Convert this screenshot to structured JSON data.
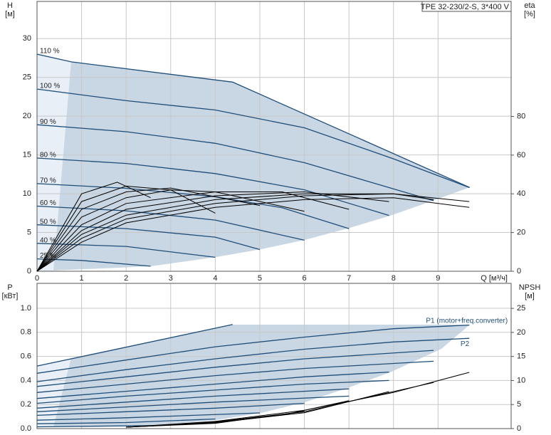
{
  "chart_data": [
    {
      "type": "line",
      "title": "TPE 32-230/2-S, 3*400 V",
      "ylabel": [
        "H",
        "[м]"
      ],
      "y2label": [
        "eta",
        "[%]"
      ],
      "xlabel": "Q [м³/ч]",
      "xlim": [
        0,
        10.64
      ],
      "xticks": [
        0,
        1,
        2,
        3,
        4,
        5,
        6,
        7,
        8,
        9
      ],
      "ylim": [
        0,
        34.8
      ],
      "yticks": [
        0,
        5,
        10,
        15,
        20,
        25,
        30
      ],
      "y2lim": [
        0,
        139.4
      ],
      "y2ticks": [
        0,
        20,
        40,
        60,
        80
      ],
      "grid": true,
      "series": [
        {
          "name": "110 %",
          "color": "#1f4e79",
          "x": [
            0,
            0.77,
            4.39,
            9.71
          ],
          "values": [
            28,
            27,
            24.4,
            10.8
          ]
        },
        {
          "name": "100 %",
          "color": "#1f4e79",
          "x": [
            0,
            2,
            4,
            6,
            8,
            9.7
          ],
          "values": [
            23.5,
            22,
            20.8,
            18.5,
            14.5,
            10.8
          ]
        },
        {
          "name": "90 %",
          "color": "#1f4e79",
          "x": [
            0,
            2,
            4,
            6,
            8.9
          ],
          "values": [
            18.9,
            18,
            16.5,
            14,
            9.1
          ]
        },
        {
          "name": "80 %",
          "color": "#1f4e79",
          "x": [
            0,
            2,
            4,
            6,
            7.9
          ],
          "values": [
            14.6,
            13.9,
            12.6,
            10.5,
            7.2
          ]
        },
        {
          "name": "70 %",
          "color": "#1f4e79",
          "x": [
            0,
            2,
            4,
            5.5,
            7
          ],
          "values": [
            11.3,
            10.7,
            9.6,
            8.2,
            5.5
          ]
        },
        {
          "name": "60 %",
          "color": "#1f4e79",
          "x": [
            0,
            2,
            4,
            6
          ],
          "values": [
            8.4,
            7.8,
            6.6,
            4
          ]
        },
        {
          "name": "50 %",
          "color": "#1f4e79",
          "x": [
            0,
            2,
            4,
            5
          ],
          "values": [
            6,
            5.5,
            4.4,
            2.8
          ]
        },
        {
          "name": "40 %",
          "color": "#1f4e79",
          "x": [
            0,
            2,
            4
          ],
          "values": [
            3.6,
            3.2,
            1.8
          ]
        },
        {
          "name": "25 %",
          "color": "#1f4e79",
          "x": [
            0,
            1,
            2.55
          ],
          "values": [
            1.6,
            1.4,
            0.65
          ]
        },
        {
          "color": "#000000",
          "axis": "y2",
          "x": [
            0,
            1,
            2,
            4,
            6,
            8,
            9.7
          ],
          "values": [
            0,
            15,
            25,
            33,
            37,
            38,
            33
          ]
        },
        {
          "color": "#000000",
          "axis": "y2",
          "x": [
            0,
            1,
            2,
            4,
            6,
            8,
            9.7
          ],
          "values": [
            0,
            17,
            27,
            35,
            39,
            40,
            36
          ]
        },
        {
          "color": "#000000",
          "axis": "y2",
          "x": [
            0,
            1,
            2,
            4,
            6,
            8,
            8.9
          ],
          "values": [
            0,
            19,
            29,
            37,
            40,
            40,
            37
          ]
        },
        {
          "color": "#000000",
          "axis": "y2",
          "x": [
            0,
            1,
            2,
            4,
            6,
            7.9
          ],
          "values": [
            0,
            21,
            32,
            39,
            41,
            36
          ]
        },
        {
          "color": "#000000",
          "axis": "y2",
          "x": [
            0,
            1,
            2,
            4,
            5.5,
            7
          ],
          "values": [
            0,
            24,
            35,
            41,
            41,
            32
          ]
        },
        {
          "color": "#000000",
          "axis": "y2",
          "x": [
            0,
            1,
            2,
            3,
            4,
            6
          ],
          "values": [
            0,
            28,
            38,
            42,
            41,
            31
          ]
        },
        {
          "color": "#000000",
          "axis": "y2",
          "x": [
            0,
            1,
            2,
            3,
            5
          ],
          "values": [
            0,
            32,
            41,
            43,
            34
          ]
        },
        {
          "color": "#000000",
          "axis": "y2",
          "x": [
            0,
            1,
            2,
            3,
            4
          ],
          "values": [
            0,
            36,
            44,
            42,
            30
          ]
        },
        {
          "color": "#000000",
          "axis": "y2",
          "x": [
            0,
            1,
            1.8,
            2.55
          ],
          "values": [
            0,
            40,
            46,
            38
          ]
        }
      ]
    },
    {
      "type": "line",
      "ylabel": [
        "P",
        "[кВт]"
      ],
      "y2label": [
        "NPSH",
        "[м]"
      ],
      "ylim": [
        0,
        1.207
      ],
      "yticks": [
        {
          "value": 0,
          "label": "0.0"
        },
        0.2,
        0.4,
        0.6,
        0.8,
        {
          "value": 1,
          "label": "1.0"
        }
      ],
      "y2lim": [
        0,
        30.2
      ],
      "y2ticks": [
        0,
        5,
        10,
        15,
        20,
        25
      ],
      "grid": true,
      "series": [
        {
          "name": "P1 (motor+freq.converter)",
          "color": "#1f4e79",
          "x": [
            0,
            2,
            4,
            6,
            8,
            9.7
          ],
          "values": [
            0.46,
            0.57,
            0.68,
            0.76,
            0.83,
            0.86
          ]
        },
        {
          "name": "P2",
          "color": "#1f4e79",
          "x": [
            0,
            2,
            4,
            6,
            8,
            9.7
          ],
          "values": [
            0.39,
            0.49,
            0.58,
            0.66,
            0.72,
            0.75
          ]
        },
        {
          "color": "#1f4e79",
          "x": [
            0,
            0.77,
            4.39
          ],
          "values": [
            0.52,
            0.58,
            0.865
          ]
        },
        {
          "color": "#1f4e79",
          "x": [
            0,
            2,
            4,
            6,
            8.9
          ],
          "values": [
            0.35,
            0.43,
            0.51,
            0.58,
            0.65
          ]
        },
        {
          "color": "#1f4e79",
          "x": [
            0,
            2,
            4,
            6,
            8.9
          ],
          "values": [
            0.3,
            0.37,
            0.44,
            0.5,
            0.56
          ]
        },
        {
          "color": "#1f4e79",
          "x": [
            0,
            2,
            4,
            6,
            7.9
          ],
          "values": [
            0.25,
            0.31,
            0.37,
            0.43,
            0.47
          ]
        },
        {
          "color": "#1f4e79",
          "x": [
            0,
            2,
            4,
            6,
            7.9
          ],
          "values": [
            0.21,
            0.27,
            0.32,
            0.37,
            0.4
          ]
        },
        {
          "color": "#1f4e79",
          "x": [
            0,
            2,
            4,
            7
          ],
          "values": [
            0.17,
            0.22,
            0.27,
            0.33
          ]
        },
        {
          "color": "#1f4e79",
          "x": [
            0,
            2,
            4,
            7
          ],
          "values": [
            0.14,
            0.18,
            0.22,
            0.27
          ]
        },
        {
          "color": "#1f4e79",
          "x": [
            0,
            2,
            4,
            6
          ],
          "values": [
            0.11,
            0.14,
            0.17,
            0.21
          ]
        },
        {
          "color": "#1f4e79",
          "x": [
            0,
            2,
            5
          ],
          "values": [
            0.07,
            0.09,
            0.13
          ]
        },
        {
          "color": "#1f4e79",
          "x": [
            0,
            2,
            4
          ],
          "values": [
            0.04,
            0.05,
            0.08
          ]
        },
        {
          "color": "#1f4e79",
          "x": [
            0,
            2.55
          ],
          "values": [
            0.015,
            0.025
          ]
        },
        {
          "color": "#000000",
          "axis": "y2",
          "x": [
            2,
            4,
            6,
            8,
            9.7
          ],
          "values": [
            0.3,
            1.5,
            3.8,
            7.5,
            11.7
          ]
        },
        {
          "color": "#000000",
          "axis": "y2",
          "x": [
            2,
            4,
            6,
            8.9
          ],
          "values": [
            0.3,
            1.4,
            3.5,
            9.6
          ]
        },
        {
          "color": "#000000",
          "axis": "y2",
          "x": [
            2,
            4,
            6,
            7.9
          ],
          "values": [
            0.3,
            1.3,
            3.3,
            7.7
          ]
        },
        {
          "color": "#000000",
          "axis": "y2",
          "x": [
            2,
            4,
            5.5,
            7
          ],
          "values": [
            0.3,
            1.2,
            2.8,
            5.8
          ]
        },
        {
          "color": "#000000",
          "axis": "y2",
          "x": [
            2,
            4,
            6
          ],
          "values": [
            0.3,
            1.1,
            3.6
          ]
        }
      ]
    }
  ]
}
